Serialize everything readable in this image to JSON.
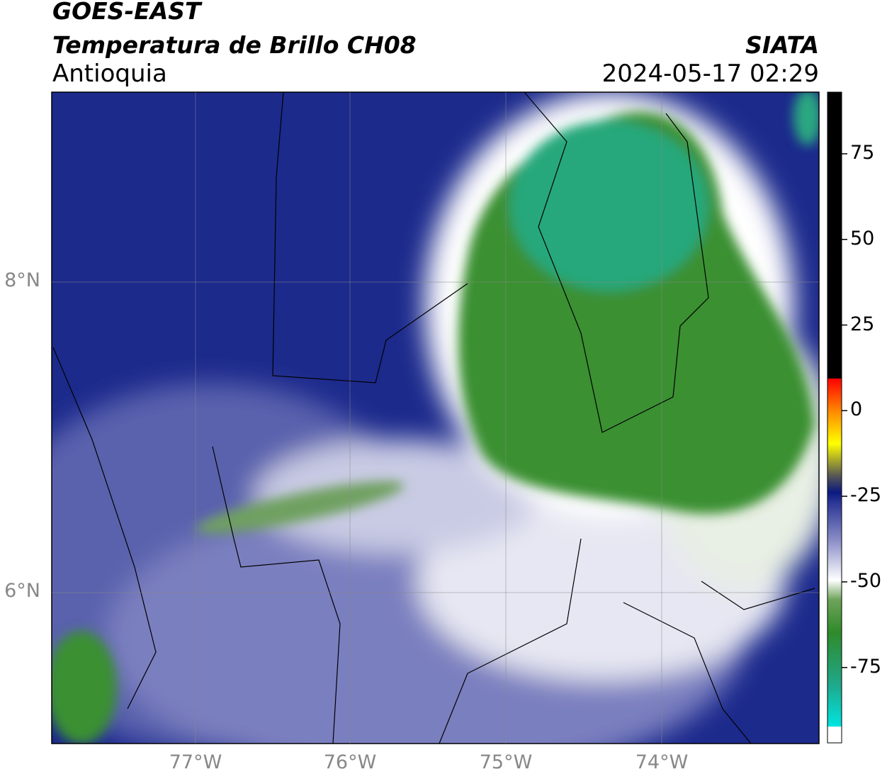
{
  "header": {
    "title": "GOES-EAST",
    "subtitle": "Temperatura de Brillo CH08",
    "region": "Antioquia",
    "source": "SIATA",
    "datetime": "2024-05-17 02:29"
  },
  "map": {
    "lon_labels": [
      "77°W",
      "76°W",
      "75°W",
      "74°W"
    ],
    "lat_labels": [
      "8°N",
      "6°N"
    ]
  },
  "colorbar": {
    "lim": [
      -97,
      93
    ],
    "ticks": [
      75,
      50,
      25,
      0,
      -25,
      -50,
      -75
    ]
  }
}
